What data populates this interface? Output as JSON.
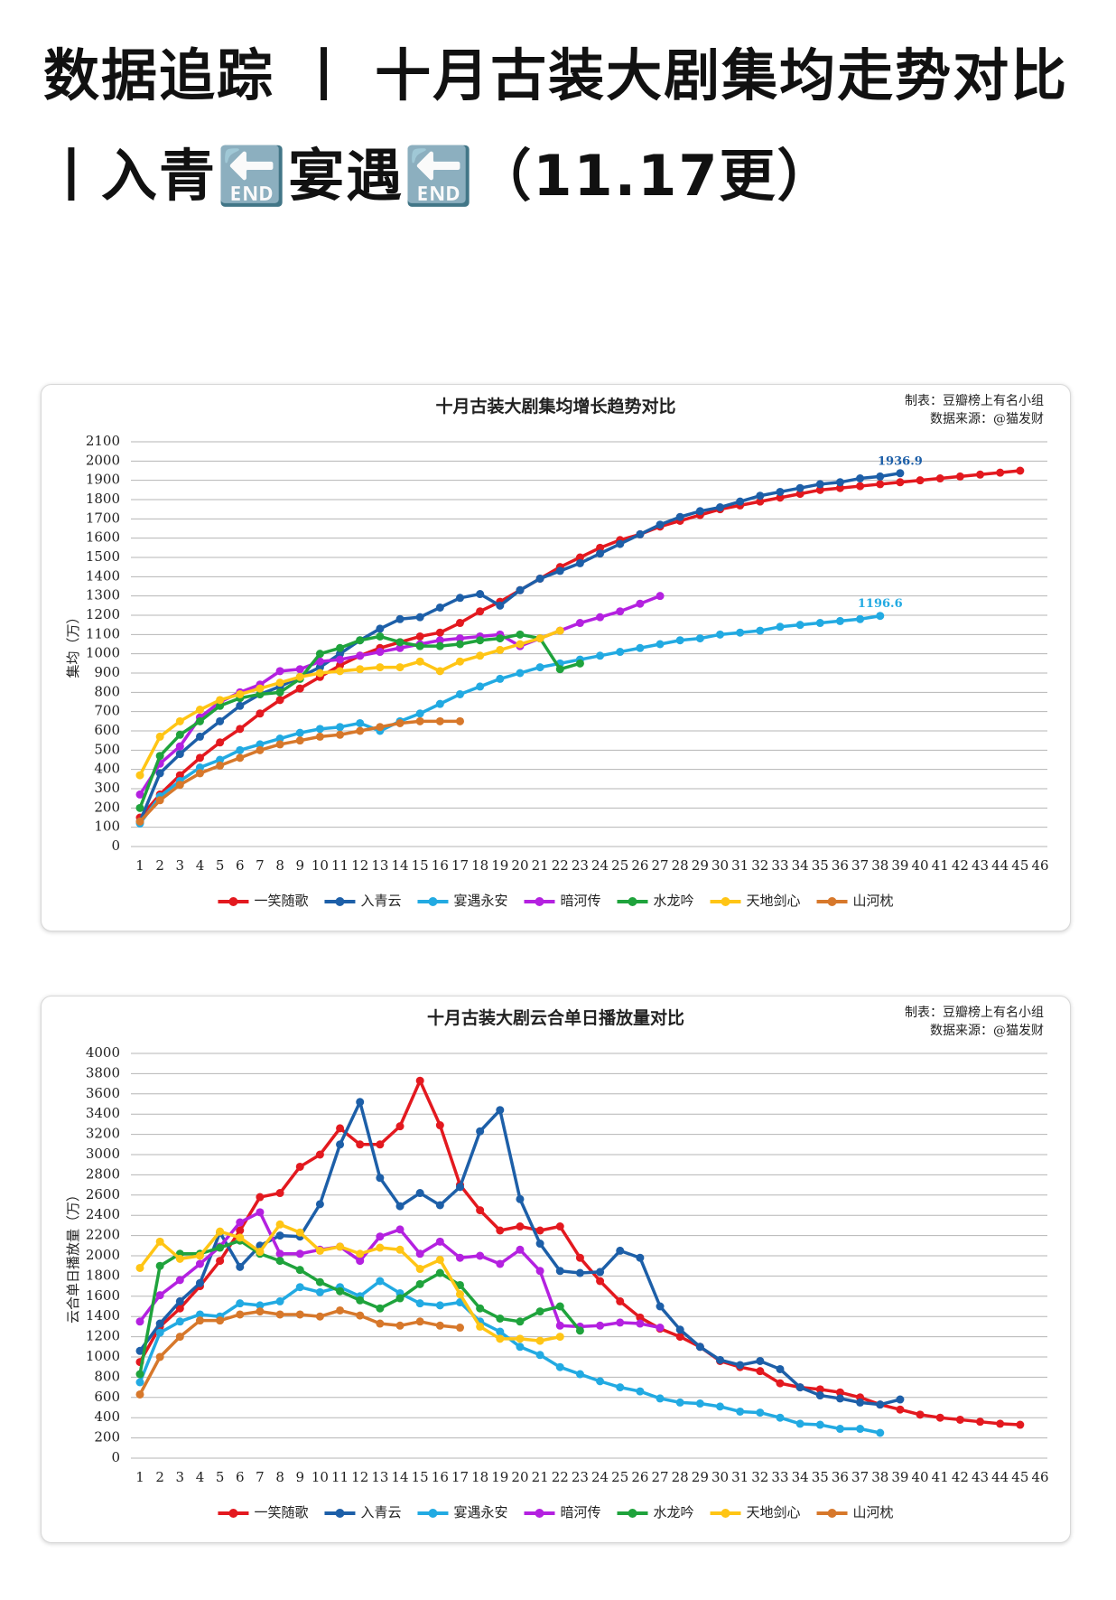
{
  "post_title": "数据追踪 丨 十月古装大剧集均走势对比丨入青🔚宴遇🔚（11.17更）",
  "chart_data": [
    {
      "type": "line",
      "title": "十月古装大剧集均增长趋势对比",
      "credits": [
        "制表：豆瓣榜上有名小组",
        "数据来源：@猫发财"
      ],
      "y_label": "集均（万）",
      "x": [
        1,
        2,
        3,
        4,
        5,
        6,
        7,
        8,
        9,
        10,
        11,
        12,
        13,
        14,
        15,
        16,
        17,
        18,
        19,
        20,
        21,
        22,
        23,
        24,
        25,
        26,
        27,
        28,
        29,
        30,
        31,
        32,
        33,
        34,
        35,
        36,
        37,
        38,
        39,
        40,
        41,
        42,
        43,
        44,
        45,
        46
      ],
      "xlim": [
        1,
        46
      ],
      "xticks": [
        1,
        2,
        3,
        4,
        5,
        6,
        7,
        8,
        9,
        10,
        11,
        12,
        13,
        14,
        15,
        16,
        17,
        18,
        19,
        20,
        21,
        22,
        23,
        24,
        25,
        26,
        27,
        28,
        29,
        30,
        31,
        32,
        33,
        34,
        35,
        36,
        37,
        38,
        39,
        40,
        41,
        42,
        43,
        44,
        45,
        46
      ],
      "ylim": [
        0,
        2100
      ],
      "yticks": [
        0,
        100,
        200,
        300,
        400,
        500,
        600,
        700,
        800,
        900,
        1000,
        1100,
        1200,
        1300,
        1400,
        1500,
        1600,
        1700,
        1800,
        1900,
        2000,
        2100
      ],
      "grid": true,
      "legend": "bottom",
      "series": [
        {
          "name": "一笑随歌",
          "color": "#e3191f",
          "values": [
            150,
            270,
            370,
            460,
            540,
            610,
            690,
            760,
            820,
            880,
            940,
            990,
            1030,
            1060,
            1090,
            1110,
            1160,
            1220,
            1270,
            1330,
            1390,
            1450,
            1500,
            1550,
            1590,
            1620,
            1660,
            1690,
            1720,
            1750,
            1770,
            1790,
            1810,
            1830,
            1850,
            1860,
            1870,
            1880,
            1890,
            1900,
            1910,
            1920,
            1930,
            1940,
            1950,
            null
          ]
        },
        {
          "name": "入青云",
          "color": "#1d5fa8",
          "values": [
            130,
            380,
            480,
            570,
            650,
            730,
            790,
            830,
            880,
            930,
            1000,
            1070,
            1130,
            1180,
            1190,
            1240,
            1290,
            1310,
            1250,
            1330,
            1390,
            1430,
            1470,
            1520,
            1570,
            1620,
            1670,
            1710,
            1740,
            1760,
            1790,
            1820,
            1840,
            1860,
            1880,
            1890,
            1910,
            1920,
            1936.9,
            null,
            null,
            null,
            null,
            null,
            null,
            null
          ],
          "value_labels": [
            null,
            null,
            null,
            null,
            null,
            null,
            null,
            null,
            null,
            null,
            null,
            null,
            null,
            null,
            null,
            null,
            null,
            null,
            null,
            null,
            null,
            null,
            null,
            null,
            null,
            null,
            null,
            null,
            null,
            null,
            null,
            null,
            null,
            null,
            null,
            null,
            null,
            null,
            "1936.9",
            null,
            null,
            null,
            null,
            null,
            null,
            null
          ]
        },
        {
          "name": "宴遇永安",
          "color": "#22aae2",
          "values": [
            120,
            260,
            340,
            410,
            450,
            500,
            530,
            560,
            590,
            610,
            620,
            640,
            600,
            650,
            690,
            740,
            790,
            830,
            870,
            900,
            930,
            950,
            970,
            990,
            1010,
            1030,
            1050,
            1070,
            1080,
            1100,
            1110,
            1120,
            1140,
            1150,
            1160,
            1170,
            1180,
            1196.6,
            null,
            null,
            null,
            null,
            null,
            null,
            null,
            null
          ],
          "value_labels": [
            null,
            null,
            null,
            null,
            null,
            null,
            null,
            null,
            null,
            null,
            null,
            null,
            null,
            null,
            null,
            null,
            null,
            null,
            null,
            null,
            null,
            null,
            null,
            null,
            null,
            null,
            null,
            null,
            null,
            null,
            null,
            null,
            null,
            null,
            null,
            null,
            null,
            "1196.6",
            null,
            null,
            null,
            null,
            null,
            null,
            null,
            null
          ]
        },
        {
          "name": "暗河传",
          "color": "#b421e0",
          "values": [
            270,
            430,
            520,
            670,
            750,
            800,
            840,
            910,
            920,
            960,
            970,
            990,
            1010,
            1030,
            1050,
            1070,
            1080,
            1090,
            1100,
            1040,
            1080,
            1120,
            1160,
            1190,
            1220,
            1260,
            1300,
            null,
            null,
            null,
            null,
            null,
            null,
            null,
            null,
            null,
            null,
            null,
            null,
            null,
            null,
            null,
            null,
            null,
            null,
            null
          ]
        },
        {
          "name": "水龙吟",
          "color": "#1fa33c",
          "values": [
            200,
            470,
            580,
            650,
            730,
            770,
            790,
            800,
            870,
            1000,
            1030,
            1070,
            1090,
            1060,
            1040,
            1040,
            1050,
            1070,
            1080,
            1100,
            1080,
            920,
            950,
            null,
            null,
            null,
            null,
            null,
            null,
            null,
            null,
            null,
            null,
            null,
            null,
            null,
            null,
            null,
            null,
            null,
            null,
            null,
            null,
            null,
            null,
            null
          ]
        },
        {
          "name": "天地剑心",
          "color": "#ffc515",
          "values": [
            370,
            570,
            650,
            710,
            760,
            790,
            820,
            850,
            880,
            900,
            910,
            920,
            930,
            930,
            960,
            910,
            960,
            990,
            1020,
            1050,
            1080,
            1120,
            null,
            null,
            null,
            null,
            null,
            null,
            null,
            null,
            null,
            null,
            null,
            null,
            null,
            null,
            null,
            null,
            null,
            null,
            null,
            null,
            null,
            null,
            null,
            null
          ]
        },
        {
          "name": "山河枕",
          "color": "#d7782b",
          "values": [
            130,
            240,
            320,
            380,
            420,
            460,
            500,
            530,
            550,
            570,
            580,
            600,
            620,
            640,
            650,
            650,
            650,
            null,
            null,
            null,
            null,
            null,
            null,
            null,
            null,
            null,
            null,
            null,
            null,
            null,
            null,
            null,
            null,
            null,
            null,
            null,
            null,
            null,
            null,
            null,
            null,
            null,
            null,
            null,
            null,
            null
          ]
        }
      ]
    },
    {
      "type": "line",
      "title": "十月古装大剧云合单日播放量对比",
      "credits": [
        "制表：豆瓣榜上有名小组",
        "数据来源：@猫发财"
      ],
      "y_label": "云合单日播放量（万）",
      "x": [
        1,
        2,
        3,
        4,
        5,
        6,
        7,
        8,
        9,
        10,
        11,
        12,
        13,
        14,
        15,
        16,
        17,
        18,
        19,
        20,
        21,
        22,
        23,
        24,
        25,
        26,
        27,
        28,
        29,
        30,
        31,
        32,
        33,
        34,
        35,
        36,
        37,
        38,
        39,
        40,
        41,
        42,
        43,
        44,
        45,
        46
      ],
      "xlim": [
        1,
        46
      ],
      "xticks": [
        1,
        2,
        3,
        4,
        5,
        6,
        7,
        8,
        9,
        10,
        11,
        12,
        13,
        14,
        15,
        16,
        17,
        18,
        19,
        20,
        21,
        22,
        23,
        24,
        25,
        26,
        27,
        28,
        29,
        30,
        31,
        32,
        33,
        34,
        35,
        36,
        37,
        38,
        39,
        40,
        41,
        42,
        43,
        44,
        45,
        46
      ],
      "ylim": [
        0,
        4000
      ],
      "yticks": [
        0,
        200,
        400,
        600,
        800,
        1000,
        1200,
        1400,
        1600,
        1800,
        2000,
        2200,
        2400,
        2600,
        2800,
        3000,
        3200,
        3400,
        3600,
        3800,
        4000
      ],
      "grid": true,
      "legend": "bottom",
      "series": [
        {
          "name": "一笑随歌",
          "color": "#e3191f",
          "values": [
            950,
            1300,
            1480,
            1700,
            1950,
            2250,
            2580,
            2620,
            2880,
            3000,
            3260,
            3100,
            3100,
            3280,
            3730,
            3290,
            2700,
            2450,
            2250,
            2290,
            2250,
            2290,
            1980,
            1750,
            1550,
            1390,
            1280,
            1200,
            1100,
            960,
            900,
            860,
            740,
            700,
            680,
            650,
            600,
            530,
            480,
            430,
            400,
            380,
            360,
            340,
            330,
            null
          ]
        },
        {
          "name": "入青云",
          "color": "#1d5fa8",
          "values": [
            1060,
            1330,
            1550,
            1730,
            2230,
            1890,
            2100,
            2200,
            2190,
            2510,
            3100,
            3520,
            2770,
            2490,
            2620,
            2500,
            2680,
            3230,
            3440,
            2560,
            2120,
            1850,
            1830,
            1840,
            2050,
            1980,
            1500,
            1270,
            1100,
            970,
            920,
            960,
            880,
            700,
            620,
            590,
            550,
            530,
            580,
            null,
            null,
            null,
            null,
            null,
            null,
            null
          ]
        },
        {
          "name": "宴遇永安",
          "color": "#22aae2",
          "values": [
            750,
            1240,
            1350,
            1420,
            1400,
            1530,
            1510,
            1550,
            1690,
            1640,
            1690,
            1600,
            1750,
            1630,
            1530,
            1510,
            1540,
            1350,
            1250,
            1100,
            1020,
            900,
            830,
            760,
            700,
            660,
            590,
            550,
            540,
            510,
            460,
            450,
            400,
            340,
            330,
            290,
            290,
            250,
            null,
            null,
            null,
            null,
            null,
            null,
            null,
            null
          ]
        },
        {
          "name": "暗河传",
          "color": "#b421e0",
          "values": [
            1350,
            1610,
            1760,
            1920,
            2090,
            2330,
            2430,
            2020,
            2020,
            2060,
            2090,
            1950,
            2190,
            2260,
            2020,
            2140,
            1980,
            2000,
            1920,
            2060,
            1850,
            1310,
            1300,
            1310,
            1340,
            1330,
            1290,
            null,
            null,
            null,
            null,
            null,
            null,
            null,
            null,
            null,
            null,
            null,
            null,
            null,
            null,
            null,
            null,
            null,
            null,
            null
          ]
        },
        {
          "name": "水龙吟",
          "color": "#1fa33c",
          "values": [
            830,
            1900,
            2020,
            2020,
            2080,
            2150,
            2020,
            1950,
            1860,
            1740,
            1650,
            1560,
            1480,
            1580,
            1720,
            1830,
            1710,
            1480,
            1380,
            1350,
            1450,
            1500,
            1260,
            null,
            null,
            null,
            null,
            null,
            null,
            null,
            null,
            null,
            null,
            null,
            null,
            null,
            null,
            null,
            null,
            null,
            null,
            null,
            null,
            null,
            null,
            null
          ]
        },
        {
          "name": "天地剑心",
          "color": "#ffc515",
          "values": [
            1880,
            2140,
            1970,
            2000,
            2240,
            2180,
            2040,
            2310,
            2230,
            2050,
            2090,
            2020,
            2080,
            2060,
            1870,
            1960,
            1620,
            1300,
            1180,
            1180,
            1160,
            1200,
            null,
            null,
            null,
            null,
            null,
            null,
            null,
            null,
            null,
            null,
            null,
            null,
            null,
            null,
            null,
            null,
            null,
            null,
            null,
            null,
            null,
            null,
            null,
            null
          ]
        },
        {
          "name": "山河枕",
          "color": "#d7782b",
          "values": [
            630,
            1000,
            1200,
            1360,
            1360,
            1420,
            1450,
            1420,
            1420,
            1400,
            1460,
            1410,
            1330,
            1310,
            1350,
            1310,
            1290,
            null,
            null,
            null,
            null,
            null,
            null,
            null,
            null,
            null,
            null,
            null,
            null,
            null,
            null,
            null,
            null,
            null,
            null,
            null,
            null,
            null,
            null,
            null,
            null,
            null,
            null,
            null,
            null,
            null
          ]
        }
      ]
    }
  ]
}
